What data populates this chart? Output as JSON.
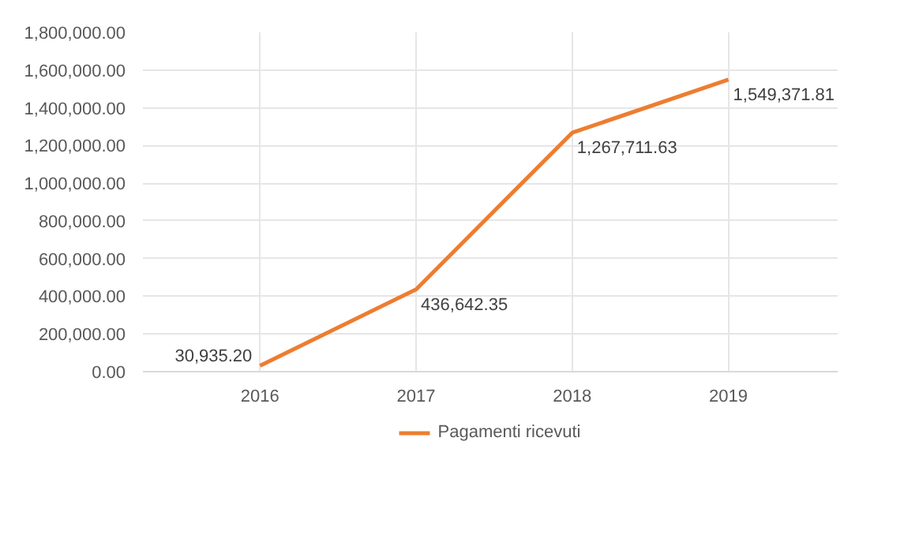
{
  "chart_data": {
    "type": "line",
    "categories": [
      "2016",
      "2017",
      "2018",
      "2019"
    ],
    "series": [
      {
        "name": "Pagamenti ricevuti",
        "color": "#ed7d31",
        "values": [
          30935.2,
          436642.35,
          1267711.63,
          1549371.81
        ]
      }
    ],
    "ylim": [
      0,
      1800000
    ],
    "yticks": [
      {
        "value": 0,
        "label": "0.00"
      },
      {
        "value": 200000,
        "label": "200,000.00"
      },
      {
        "value": 400000,
        "label": "400,000.00"
      },
      {
        "value": 600000,
        "label": "600,000.00"
      },
      {
        "value": 800000,
        "label": "800,000.00"
      },
      {
        "value": 1000000,
        "label": "1,000,000.00"
      },
      {
        "value": 1200000,
        "label": "1,200,000.00"
      },
      {
        "value": 1400000,
        "label": "1,400,000.00"
      },
      {
        "value": 1600000,
        "label": "1,600,000.00"
      },
      {
        "value": 1800000,
        "label": "1,800,000.00"
      }
    ],
    "value_labels": [
      "30,935.20",
      "436,642.35",
      "1,267,711.63",
      "1,549,371.81"
    ],
    "grid": true,
    "legend": "bottom",
    "marker": "none",
    "line_style": "solid"
  }
}
